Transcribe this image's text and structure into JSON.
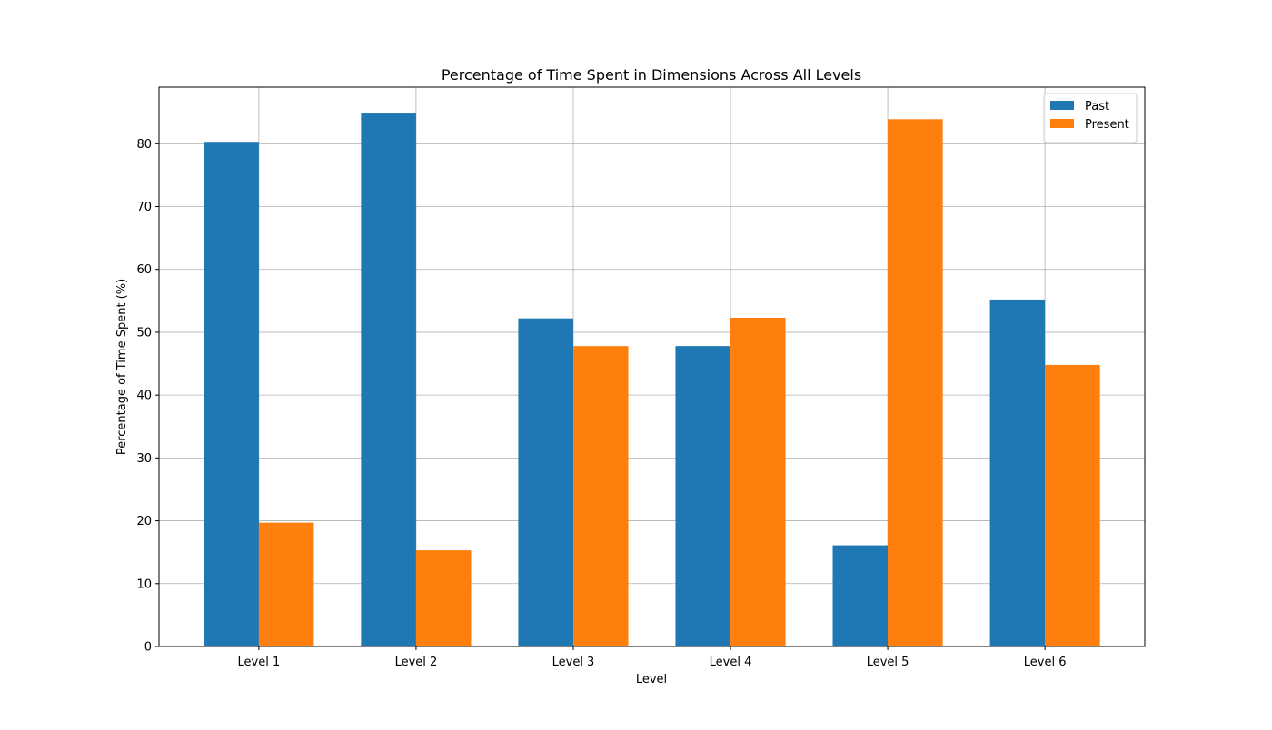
{
  "chart_data": {
    "type": "bar",
    "title": "Percentage of Time Spent in Dimensions Across All Levels",
    "xlabel": "Level",
    "ylabel": "Percentage of Time Spent (%)",
    "categories": [
      "Level 1",
      "Level 2",
      "Level 3",
      "Level 4",
      "Level 5",
      "Level 6"
    ],
    "series": [
      {
        "name": "Past",
        "color": "#1f77b4",
        "values": [
          80.3,
          84.8,
          52.2,
          47.8,
          16.1,
          55.2
        ]
      },
      {
        "name": "Present",
        "color": "#ff7f0e",
        "values": [
          19.7,
          15.3,
          47.8,
          52.3,
          83.9,
          44.8
        ]
      }
    ],
    "ylim": [
      0,
      89
    ],
    "yticks": [
      0,
      10,
      20,
      30,
      40,
      50,
      60,
      70,
      80
    ],
    "grid": true,
    "legend_position": "top-right"
  }
}
